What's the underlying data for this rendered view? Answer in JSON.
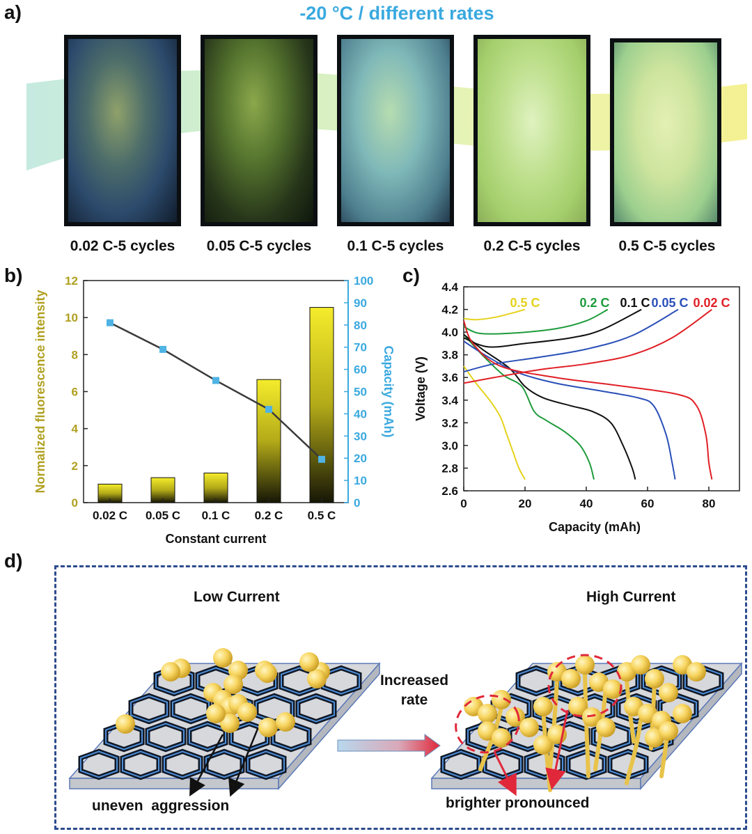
{
  "panel_a": {
    "label": "a)",
    "title": "-20 °C / different rates",
    "photos": [
      {
        "caption": "0.02 C-5 cycles"
      },
      {
        "caption": "0.05 C-5 cycles"
      },
      {
        "caption": "0.1 C-5 cycles"
      },
      {
        "caption": "0.2 C-5 cycles"
      },
      {
        "caption": "0.5 C-5 cycles"
      }
    ]
  },
  "panel_b": {
    "label": "b)"
  },
  "panel_c": {
    "label": "c)"
  },
  "panel_d": {
    "label": "d)",
    "low_title": "Low Current",
    "high_title": "High Current",
    "arrow_line1": "Increased",
    "arrow_line2": "rate",
    "low_note": "uneven  aggression",
    "high_note": "brighter pronounced"
  },
  "chart_data": [
    {
      "id": "b",
      "type": "bar",
      "xlabel": "Constant current",
      "ylabel": "Normalized  fluorescence intensity",
      "y2label": "Capacity (mAh)",
      "categories": [
        "0.02 C",
        "0.05 C",
        "0.1 C",
        "0.2 C",
        "0.5 C"
      ],
      "ylim": [
        0,
        12
      ],
      "yticks": [
        0,
        2,
        4,
        6,
        8,
        10,
        12
      ],
      "y2lim": [
        0,
        100
      ],
      "y2ticks": [
        0,
        10,
        20,
        30,
        40,
        50,
        60,
        70,
        80,
        90,
        100
      ],
      "bar_values": [
        1.0,
        1.35,
        1.6,
        6.65,
        10.55
      ],
      "line_values": [
        81,
        69,
        55,
        42,
        19.5
      ],
      "bar_color": "#d9cf1a",
      "line_color": "#3a3a3a",
      "marker_color": "#4fb3e3",
      "axis2_color": "#3aa9df"
    },
    {
      "id": "c",
      "type": "line",
      "xlabel": "Capacity (mAh)",
      "ylabel": "Voltage (V)",
      "xlim": [
        0,
        90
      ],
      "xticks": [
        0,
        20,
        40,
        60,
        80
      ],
      "ylim": [
        2.6,
        4.4
      ],
      "yticks": [
        2.6,
        2.8,
        3.0,
        3.2,
        3.4,
        3.6,
        3.8,
        4.0,
        4.2,
        4.4
      ],
      "series": [
        {
          "name": "0.5 C",
          "color": "#e5d21b",
          "charge": [
            [
              0,
              4.12
            ],
            [
              4,
              4.11
            ],
            [
              10,
              4.13
            ],
            [
              16,
              4.17
            ],
            [
              20,
              4.2
            ]
          ],
          "discharge": [
            [
              0,
              3.7
            ],
            [
              4,
              3.55
            ],
            [
              9,
              3.38
            ],
            [
              12,
              3.25
            ],
            [
              14,
              3.1
            ],
            [
              16,
              2.95
            ],
            [
              18,
              2.8
            ],
            [
              20,
              2.7
            ]
          ]
        },
        {
          "name": "0.2 C",
          "color": "#1e9b3c",
          "charge": [
            [
              0,
              4.05
            ],
            [
              5,
              3.99
            ],
            [
              15,
              3.99
            ],
            [
              30,
              4.03
            ],
            [
              40,
              4.1
            ],
            [
              47,
              4.2
            ]
          ],
          "discharge": [
            [
              0,
              3.98
            ],
            [
              6,
              3.8
            ],
            [
              13,
              3.62
            ],
            [
              19,
              3.52
            ],
            [
              23,
              3.3
            ],
            [
              27,
              3.22
            ],
            [
              33,
              3.12
            ],
            [
              38,
              3.0
            ],
            [
              41,
              2.85
            ],
            [
              42.5,
              2.7
            ]
          ]
        },
        {
          "name": "0.1 C",
          "color": "#111111",
          "charge": [
            [
              0,
              3.95
            ],
            [
              8,
              3.87
            ],
            [
              20,
              3.9
            ],
            [
              35,
              3.95
            ],
            [
              45,
              4.02
            ],
            [
              58,
              4.2
            ]
          ],
          "discharge": [
            [
              0,
              3.98
            ],
            [
              6,
              3.85
            ],
            [
              15,
              3.68
            ],
            [
              20,
              3.52
            ],
            [
              26,
              3.42
            ],
            [
              35,
              3.35
            ],
            [
              42,
              3.3
            ],
            [
              48,
              3.2
            ],
            [
              52,
              3.0
            ],
            [
              55,
              2.8
            ],
            [
              56,
              2.7
            ]
          ]
        },
        {
          "name": "0.05 C",
          "color": "#2a4fb8",
          "charge": [
            [
              0,
              3.65
            ],
            [
              10,
              3.72
            ],
            [
              25,
              3.78
            ],
            [
              40,
              3.85
            ],
            [
              55,
              3.97
            ],
            [
              70,
              4.2
            ]
          ],
          "discharge": [
            [
              0,
              3.92
            ],
            [
              8,
              3.78
            ],
            [
              18,
              3.64
            ],
            [
              30,
              3.55
            ],
            [
              45,
              3.48
            ],
            [
              57,
              3.42
            ],
            [
              62,
              3.35
            ],
            [
              66,
              3.1
            ],
            [
              68,
              2.85
            ],
            [
              69,
              2.7
            ]
          ]
        },
        {
          "name": "0.02 C",
          "color": "#e01f26",
          "charge": [
            [
              0,
              3.55
            ],
            [
              10,
              3.6
            ],
            [
              25,
              3.67
            ],
            [
              40,
              3.72
            ],
            [
              55,
              3.8
            ],
            [
              68,
              3.95
            ],
            [
              81,
              4.2
            ]
          ],
          "discharge": [
            [
              0,
              4.1
            ],
            [
              3,
              3.9
            ],
            [
              12,
              3.7
            ],
            [
              30,
              3.6
            ],
            [
              50,
              3.53
            ],
            [
              70,
              3.45
            ],
            [
              76,
              3.35
            ],
            [
              79,
              3.1
            ],
            [
              80,
              2.85
            ],
            [
              81,
              2.7
            ]
          ]
        }
      ]
    }
  ]
}
